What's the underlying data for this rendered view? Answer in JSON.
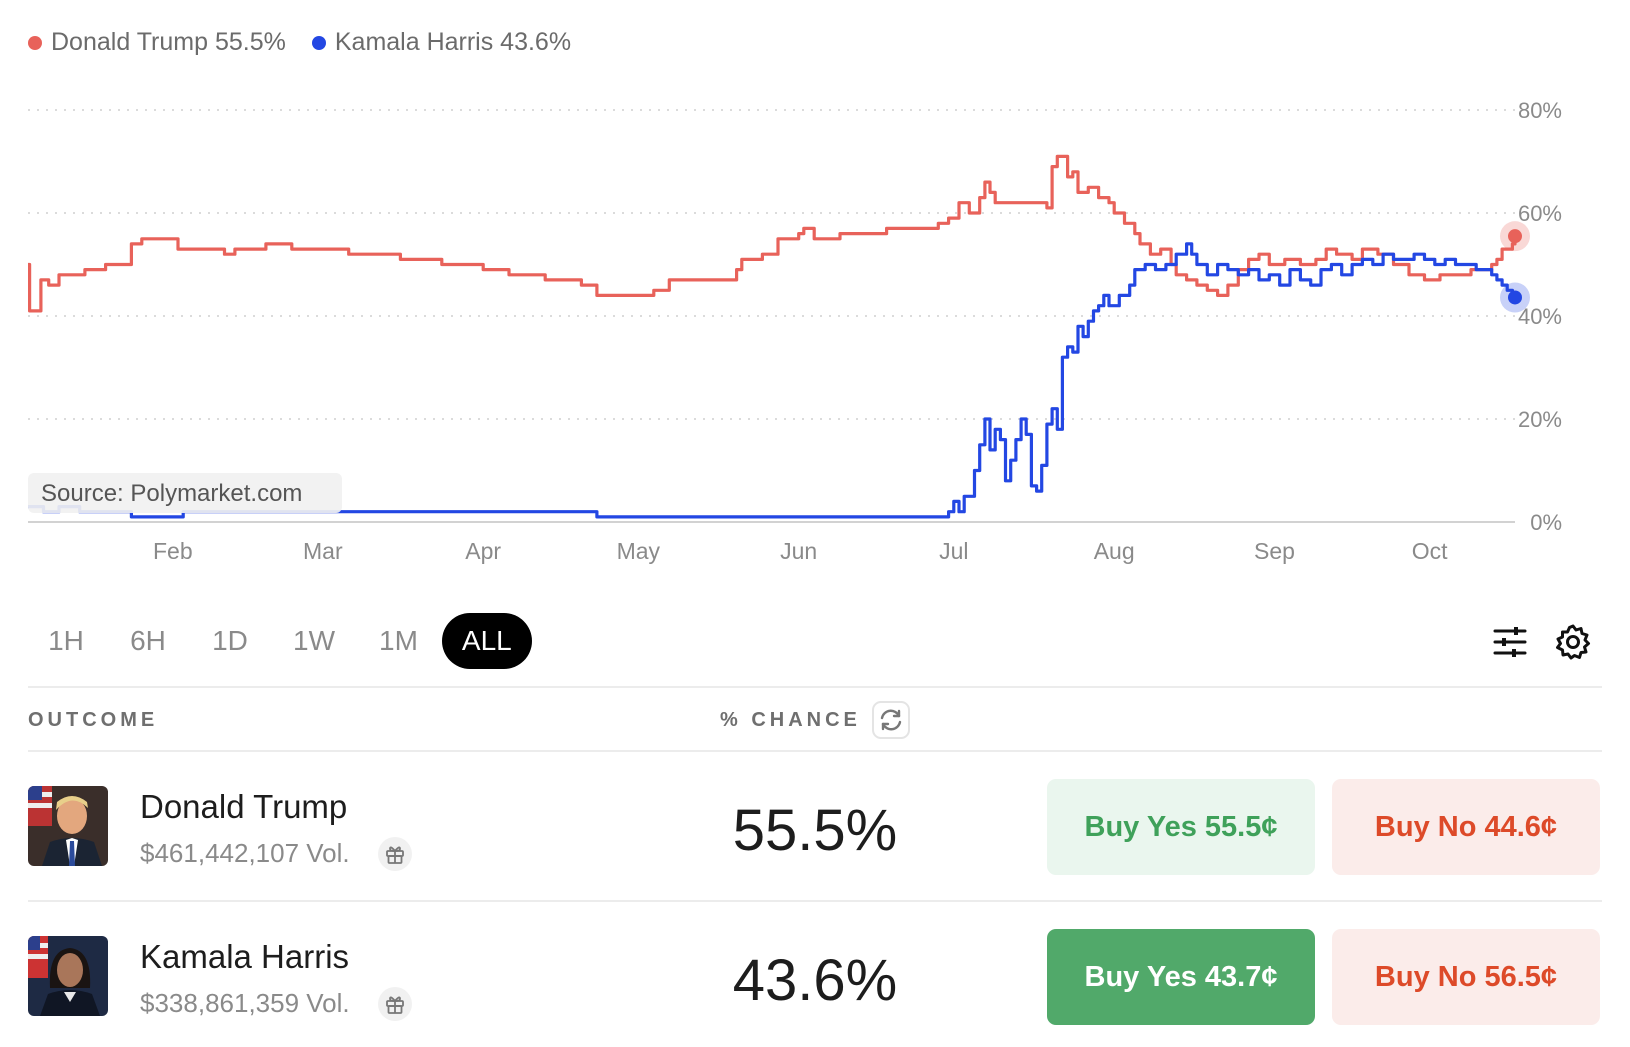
{
  "legend": [
    {
      "label": "Donald Trump 55.5%",
      "color": "#e8625a"
    },
    {
      "label": "Kamala Harris 43.6%",
      "color": "#2347e3"
    }
  ],
  "chart_data": {
    "type": "line",
    "source": "Source: Polymarket.com",
    "x_ticks": [
      "Feb",
      "Mar",
      "Apr",
      "May",
      "Jun",
      "Jul",
      "Aug",
      "Sep",
      "Oct"
    ],
    "y_ticks": [
      "80%",
      "60%",
      "40%",
      "20%",
      "0%"
    ],
    "ylim": [
      0,
      80
    ],
    "x_axis": "day index from Jan 4 (Feb 1 = 28, Mar 1 = 57, Apr 1 = 88, May 1 = 118, Jun 1 = 149, Jul 1 = 179, Aug 1 = 210, Sep 1 = 241, Oct 1 = 271)",
    "series": [
      {
        "name": "Donald Trump",
        "color": "#e8625a",
        "end_value": 55.5,
        "points": [
          [
            0,
            50
          ],
          [
            0.3,
            41
          ],
          [
            2,
            41
          ],
          [
            2.5,
            47
          ],
          [
            4,
            46
          ],
          [
            6,
            48
          ],
          [
            9,
            48
          ],
          [
            11,
            49
          ],
          [
            13,
            49
          ],
          [
            15,
            50
          ],
          [
            17,
            50
          ],
          [
            19,
            50
          ],
          [
            20,
            54
          ],
          [
            22,
            55
          ],
          [
            25,
            55
          ],
          [
            28,
            55
          ],
          [
            29,
            53
          ],
          [
            33,
            53
          ],
          [
            37,
            53
          ],
          [
            38,
            52
          ],
          [
            40,
            53
          ],
          [
            43,
            53
          ],
          [
            46,
            54
          ],
          [
            50,
            54
          ],
          [
            51,
            53
          ],
          [
            54,
            53
          ],
          [
            57,
            53
          ],
          [
            60,
            53
          ],
          [
            62,
            52
          ],
          [
            64,
            52
          ],
          [
            68,
            52
          ],
          [
            72,
            51
          ],
          [
            75,
            51
          ],
          [
            80,
            50
          ],
          [
            84,
            50
          ],
          [
            88,
            49
          ],
          [
            93,
            48
          ],
          [
            100,
            47
          ],
          [
            107,
            46
          ],
          [
            110,
            44
          ],
          [
            113,
            44
          ],
          [
            116,
            44
          ],
          [
            118,
            44
          ],
          [
            121,
            45
          ],
          [
            124,
            47
          ],
          [
            128,
            47
          ],
          [
            131,
            47
          ],
          [
            134,
            47
          ],
          [
            137,
            49
          ],
          [
            138,
            51
          ],
          [
            142,
            52
          ],
          [
            145,
            55
          ],
          [
            149,
            56
          ],
          [
            150,
            57
          ],
          [
            152,
            55
          ],
          [
            154,
            55
          ],
          [
            157,
            56
          ],
          [
            160,
            56
          ],
          [
            163,
            56
          ],
          [
            166,
            57
          ],
          [
            169,
            57
          ],
          [
            172,
            57
          ],
          [
            176,
            58
          ],
          [
            178,
            59
          ],
          [
            180,
            62
          ],
          [
            182,
            60
          ],
          [
            184,
            63
          ],
          [
            185,
            66
          ],
          [
            186,
            64
          ],
          [
            187,
            62
          ],
          [
            190,
            62
          ],
          [
            193,
            62
          ],
          [
            195,
            62
          ],
          [
            197,
            61
          ],
          [
            198,
            69
          ],
          [
            199,
            71
          ],
          [
            201,
            67
          ],
          [
            202,
            68
          ],
          [
            203,
            64
          ],
          [
            205,
            65
          ],
          [
            207,
            63
          ],
          [
            209,
            62
          ],
          [
            210,
            60
          ],
          [
            212,
            58
          ],
          [
            214,
            56
          ],
          [
            215,
            54
          ],
          [
            217,
            52
          ],
          [
            219,
            53
          ],
          [
            221,
            50
          ],
          [
            222,
            48
          ],
          [
            224,
            47
          ],
          [
            226,
            46
          ],
          [
            228,
            45
          ],
          [
            230,
            44
          ],
          [
            232,
            46
          ],
          [
            234,
            49
          ],
          [
            236,
            51
          ],
          [
            238,
            52
          ],
          [
            240,
            50
          ],
          [
            243,
            51
          ],
          [
            246,
            50
          ],
          [
            249,
            51
          ],
          [
            251,
            53
          ],
          [
            253,
            52
          ],
          [
            256,
            51
          ],
          [
            258,
            53
          ],
          [
            261,
            52
          ],
          [
            264,
            50
          ],
          [
            267,
            48
          ],
          [
            270,
            47
          ],
          [
            273,
            48
          ],
          [
            276,
            48
          ],
          [
            279,
            49
          ],
          [
            282,
            49
          ],
          [
            283,
            50
          ],
          [
            284,
            51
          ],
          [
            285,
            53
          ],
          [
            286,
            53
          ],
          [
            287,
            54
          ],
          [
            287.5,
            55.5
          ]
        ]
      },
      {
        "name": "Kamala Harris",
        "color": "#2347e3",
        "end_value": 43.6,
        "points": [
          [
            0,
            3
          ],
          [
            3,
            2
          ],
          [
            6,
            3
          ],
          [
            10,
            2
          ],
          [
            15,
            2
          ],
          [
            20,
            1
          ],
          [
            25,
            1
          ],
          [
            30,
            2
          ],
          [
            40,
            2
          ],
          [
            50,
            2
          ],
          [
            60,
            2
          ],
          [
            70,
            2
          ],
          [
            80,
            2
          ],
          [
            90,
            2
          ],
          [
            100,
            2
          ],
          [
            110,
            1
          ],
          [
            120,
            1
          ],
          [
            130,
            1
          ],
          [
            140,
            1
          ],
          [
            150,
            1
          ],
          [
            160,
            1
          ],
          [
            170,
            1
          ],
          [
            176,
            1
          ],
          [
            178,
            2
          ],
          [
            179,
            4
          ],
          [
            180,
            2
          ],
          [
            181,
            5
          ],
          [
            182,
            5
          ],
          [
            183,
            10
          ],
          [
            184,
            15
          ],
          [
            185,
            20
          ],
          [
            186,
            14
          ],
          [
            187,
            18
          ],
          [
            188,
            16
          ],
          [
            189,
            8
          ],
          [
            190,
            12
          ],
          [
            191,
            16
          ],
          [
            192,
            20
          ],
          [
            193,
            17
          ],
          [
            194,
            7
          ],
          [
            195,
            6
          ],
          [
            196,
            11
          ],
          [
            197,
            19
          ],
          [
            198,
            22
          ],
          [
            199,
            18
          ],
          [
            200,
            32
          ],
          [
            201,
            34
          ],
          [
            202,
            33
          ],
          [
            203,
            38
          ],
          [
            204,
            36
          ],
          [
            205,
            39
          ],
          [
            206,
            41
          ],
          [
            207,
            42
          ],
          [
            208,
            44
          ],
          [
            209,
            42
          ],
          [
            211,
            44
          ],
          [
            213,
            46
          ],
          [
            214,
            49
          ],
          [
            216,
            50
          ],
          [
            218,
            49
          ],
          [
            220,
            50
          ],
          [
            222,
            52
          ],
          [
            224,
            54
          ],
          [
            225,
            52
          ],
          [
            226,
            50
          ],
          [
            228,
            48
          ],
          [
            230,
            50
          ],
          [
            232,
            49
          ],
          [
            234,
            48
          ],
          [
            236,
            49
          ],
          [
            238,
            47
          ],
          [
            240,
            48
          ],
          [
            242,
            46
          ],
          [
            244,
            49
          ],
          [
            246,
            47
          ],
          [
            248,
            46
          ],
          [
            250,
            49
          ],
          [
            252,
            50
          ],
          [
            254,
            48
          ],
          [
            256,
            50
          ],
          [
            258,
            51
          ],
          [
            260,
            50
          ],
          [
            262,
            52
          ],
          [
            264,
            51
          ],
          [
            266,
            51
          ],
          [
            268,
            52
          ],
          [
            270,
            51
          ],
          [
            272,
            50
          ],
          [
            274,
            51
          ],
          [
            276,
            50
          ],
          [
            278,
            50
          ],
          [
            280,
            49
          ],
          [
            282,
            49
          ],
          [
            283,
            48
          ],
          [
            284,
            47
          ],
          [
            285,
            46
          ],
          [
            286,
            45
          ],
          [
            287,
            44
          ],
          [
            287.5,
            43.6
          ]
        ]
      }
    ]
  },
  "range_tabs": [
    "1H",
    "6H",
    "1D",
    "1W",
    "1M",
    "ALL"
  ],
  "range_active": "ALL",
  "table": {
    "header_outcome": "OUTCOME",
    "header_chance": "% CHANCE"
  },
  "outcomes": [
    {
      "name": "Donald Trump",
      "volume": "$461,442,107 Vol.",
      "chance": "55.5%",
      "buy_yes": "Buy Yes 55.5¢",
      "buy_no": "Buy No 44.6¢"
    },
    {
      "name": "Kamala Harris",
      "volume": "$338,861,359 Vol.",
      "chance": "43.6%",
      "buy_yes": "Buy Yes 43.7¢",
      "buy_no": "Buy No 56.5¢"
    }
  ]
}
